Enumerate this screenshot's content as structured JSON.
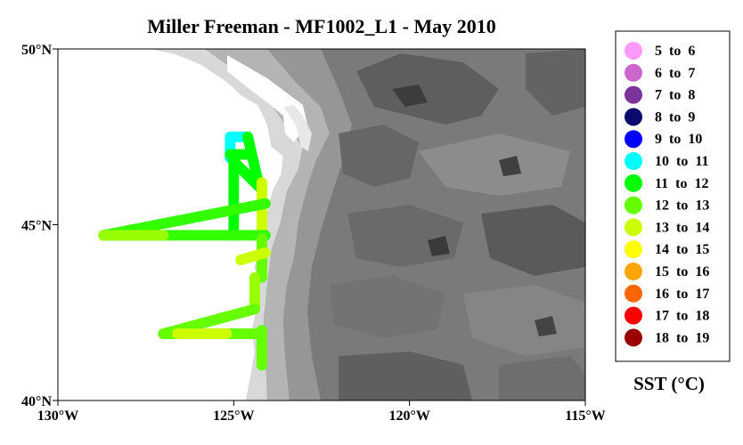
{
  "title": "Miller Freeman - MF1002_L1 - May 2010",
  "map": {
    "lat_ticks": [
      {
        "value": 50,
        "label": "50°N"
      },
      {
        "value": 45,
        "label": "45°N"
      },
      {
        "value": 40,
        "label": "40°N"
      }
    ],
    "lon_ticks": [
      {
        "value": -130,
        "label": "130°W"
      },
      {
        "value": -125,
        "label": "125°W"
      },
      {
        "value": -120,
        "label": "120°W"
      },
      {
        "value": -115,
        "label": "115°W"
      }
    ],
    "lon_range": [
      -130,
      -115
    ],
    "lat_range": [
      40,
      50
    ],
    "background": "grayscale topography (elevation shading)",
    "ocean_color": "#ffffff"
  },
  "legend": {
    "title": "SST (°C)",
    "items": [
      {
        "label": "5  to  6",
        "color": "#ff99ff"
      },
      {
        "label": "6  to  7",
        "color": "#cc66cc"
      },
      {
        "label": "7  to  8",
        "color": "#7a3399"
      },
      {
        "label": "8  to  9",
        "color": "#0a0a70"
      },
      {
        "label": "9  to  10",
        "color": "#0000ff"
      },
      {
        "label": "10  to  11",
        "color": "#00ffff"
      },
      {
        "label": "11  to  12",
        "color": "#00ff00"
      },
      {
        "label": "12  to  13",
        "color": "#66ff00"
      },
      {
        "label": "13  to  14",
        "color": "#ccff00"
      },
      {
        "label": "14  to  15",
        "color": "#ffff00"
      },
      {
        "label": "15  to  16",
        "color": "#ffa500"
      },
      {
        "label": "16  to  17",
        "color": "#ff6600"
      },
      {
        "label": "17  to  18",
        "color": "#ff0000"
      },
      {
        "label": "18  to  19",
        "color": "#990000"
      }
    ]
  },
  "cruise_track": [
    {
      "from": [
        -125.0,
        47.5
      ],
      "to": [
        -124.6,
        47.5
      ],
      "sst_color": "#00ffff"
    },
    {
      "from": [
        -125.1,
        47.5
      ],
      "to": [
        -125.1,
        46.9
      ],
      "sst_color": "#00ffff"
    },
    {
      "from": [
        -125.1,
        47.0
      ],
      "to": [
        -124.5,
        47.0
      ],
      "sst_color": "#00ff00"
    },
    {
      "from": [
        -124.6,
        47.5
      ],
      "to": [
        -124.3,
        46.2
      ],
      "sst_color": "#00ff00"
    },
    {
      "from": [
        -125.0,
        46.8
      ],
      "to": [
        -124.2,
        46.0
      ],
      "sst_color": "#00ff00"
    },
    {
      "from": [
        -125.0,
        46.8
      ],
      "to": [
        -125.0,
        44.7
      ],
      "sst_color": "#00ff00"
    },
    {
      "from": [
        -124.2,
        46.2
      ],
      "to": [
        -124.2,
        44.5
      ],
      "sst_color": "#ccff00"
    },
    {
      "from": [
        -128.7,
        44.7
      ],
      "to": [
        -124.1,
        45.6
      ],
      "sst_color": "#33ff00"
    },
    {
      "from": [
        -128.7,
        44.7
      ],
      "to": [
        -124.1,
        44.7
      ],
      "sst_color": "#33ff00"
    },
    {
      "from": [
        -128.7,
        44.7
      ],
      "to": [
        -127.0,
        44.7
      ],
      "sst_color": "#99ff00"
    },
    {
      "from": [
        -124.2,
        44.6
      ],
      "to": [
        -124.2,
        43.5
      ],
      "sst_color": "#66ff00"
    },
    {
      "from": [
        -124.8,
        44.0
      ],
      "to": [
        -124.1,
        44.2
      ],
      "sst_color": "#ccff00"
    },
    {
      "from": [
        -124.4,
        43.5
      ],
      "to": [
        -124.4,
        42.7
      ],
      "sst_color": "#99ff00"
    },
    {
      "from": [
        -127.0,
        41.9
      ],
      "to": [
        -124.4,
        42.6
      ],
      "sst_color": "#66ff00"
    },
    {
      "from": [
        -127.0,
        41.9
      ],
      "to": [
        -124.2,
        41.9
      ],
      "sst_color": "#66ff00"
    },
    {
      "from": [
        -126.6,
        41.9
      ],
      "to": [
        -125.2,
        41.9
      ],
      "sst_color": "#ccff00"
    },
    {
      "from": [
        -124.2,
        42.0
      ],
      "to": [
        -124.2,
        41.0
      ],
      "sst_color": "#66ff00"
    }
  ]
}
